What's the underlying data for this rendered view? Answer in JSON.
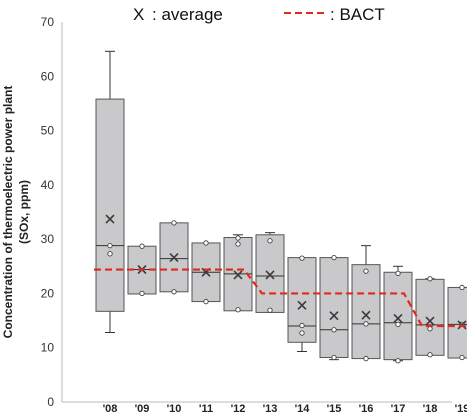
{
  "chart_data": {
    "type": "box",
    "ylabel_line1": "Concentration of thermoelectric power plant",
    "ylabel_line2": "(SOx, ppm)",
    "ylim": [
      0,
      70
    ],
    "yticks": [
      0,
      10,
      20,
      30,
      40,
      50,
      60,
      70
    ],
    "grid": false,
    "legend": {
      "average_marker": "X",
      "average_label": ": average",
      "bact_label": ": BACT"
    },
    "categories": [
      "'08",
      "'09",
      "'10",
      "'11",
      "'12",
      "'13",
      "'14",
      "'15",
      "'16",
      "'17",
      "'18",
      "'19"
    ],
    "boxes": [
      {
        "min": 12.8,
        "q1": 16.7,
        "median": 28.8,
        "q3": 55.8,
        "max": 64.6,
        "mean": 33.7,
        "points": [
          27.3,
          28.8
        ]
      },
      {
        "min": 19.9,
        "q1": 19.9,
        "median": 24.4,
        "q3": 28.7,
        "max": 28.7,
        "mean": 24.4,
        "points": [
          20.0,
          28.7
        ]
      },
      {
        "min": 20.3,
        "q1": 20.3,
        "median": 26.4,
        "q3": 33.0,
        "max": 33.0,
        "mean": 26.6,
        "points": [
          20.3,
          33.0
        ]
      },
      {
        "min": 18.5,
        "q1": 18.5,
        "median": 23.9,
        "q3": 29.3,
        "max": 29.3,
        "mean": 23.9,
        "points": [
          18.5,
          29.3
        ]
      },
      {
        "min": 16.8,
        "q1": 16.8,
        "median": 23.6,
        "q3": 30.3,
        "max": 30.8,
        "mean": 23.4,
        "points": [
          17.0,
          29.1,
          30.2
        ]
      },
      {
        "min": 16.5,
        "q1": 16.5,
        "median": 23.2,
        "q3": 30.8,
        "max": 31.2,
        "mean": 23.4,
        "points": [
          16.9,
          29.7
        ]
      },
      {
        "min": 9.3,
        "q1": 11.0,
        "median": 14.0,
        "q3": 26.6,
        "max": 26.6,
        "mean": 17.8,
        "points": [
          12.7,
          14.1,
          26.5
        ]
      },
      {
        "min": 7.8,
        "q1": 8.2,
        "median": 13.3,
        "q3": 26.6,
        "max": 26.6,
        "mean": 15.9,
        "points": [
          8.2,
          13.3,
          26.6
        ]
      },
      {
        "min": 8.0,
        "q1": 8.0,
        "median": 14.4,
        "q3": 25.3,
        "max": 28.8,
        "mean": 16.0,
        "points": [
          8.0,
          14.4,
          24.1
        ]
      },
      {
        "min": 7.6,
        "q1": 7.8,
        "median": 14.6,
        "q3": 23.9,
        "max": 25.0,
        "mean": 15.4,
        "points": [
          7.6,
          14.3,
          23.7
        ]
      },
      {
        "min": 8.6,
        "q1": 8.6,
        "median": 14.2,
        "q3": 22.6,
        "max": 22.7,
        "mean": 14.9,
        "points": [
          8.7,
          13.5,
          22.7
        ]
      },
      {
        "min": 8.1,
        "q1": 8.1,
        "median": 14.3,
        "q3": 21.1,
        "max": 21.1,
        "mean": 14.2,
        "points": [
          8.2,
          14.3,
          21.1
        ]
      }
    ],
    "bact": [
      24.4,
      24.4,
      24.4,
      24.4,
      24.4,
      20.0,
      20.0,
      20.0,
      20.0,
      20.0,
      14.0,
      14.0
    ],
    "colors": {
      "box_fill": "#c9c9cb",
      "box_stroke": "#555555",
      "bact_line": "#e02a1e",
      "mean_marker": "#3a3a3a",
      "axis": "#bbbbbb"
    }
  }
}
